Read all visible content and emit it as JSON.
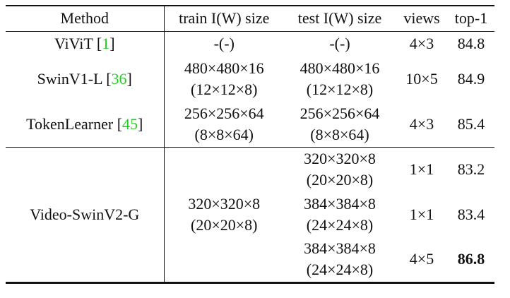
{
  "header": [
    "Method",
    "train I(W) size",
    "test I(W) size",
    "views",
    "top-1"
  ],
  "groups": [
    {
      "method": [
        "ViViT [",
        "1",
        "]"
      ],
      "train": [
        "-(-)"
      ],
      "entries": [
        {
          "test": [
            "-(-)"
          ],
          "views": "4×3",
          "top1": "84.8",
          "bold": false
        }
      ]
    },
    {
      "method": [
        "SwinV1-L [",
        "36",
        "]"
      ],
      "train": [
        "480×480×16",
        "(12×12×8)"
      ],
      "entries": [
        {
          "test": [
            "480×480×16",
            "(12×12×8)"
          ],
          "views": "10×5",
          "top1": "84.9",
          "bold": false
        }
      ]
    },
    {
      "method": [
        "TokenLearner [",
        "45",
        "]"
      ],
      "train": [
        "256×256×64",
        "(8×8×64)"
      ],
      "entries": [
        {
          "test": [
            "256×256×64",
            "(8×8×64)"
          ],
          "views": "4×3",
          "top1": "85.4",
          "bold": false
        }
      ]
    },
    {
      "method": [
        "Video-SwinV2-G"
      ],
      "train": [
        "320×320×8",
        "(20×20×8)"
      ],
      "entries": [
        {
          "test": [
            "320×320×8",
            "(20×20×8)"
          ],
          "views": "1×1",
          "top1": "83.2",
          "bold": false
        },
        {
          "test": [
            "384×384×8",
            "(24×24×8)"
          ],
          "views": "1×1",
          "top1": "83.4",
          "bold": false
        },
        {
          "test": [
            "384×384×8",
            "(24×24×8)"
          ],
          "views": "4×5",
          "top1": "86.8",
          "bold": true
        }
      ]
    }
  ]
}
